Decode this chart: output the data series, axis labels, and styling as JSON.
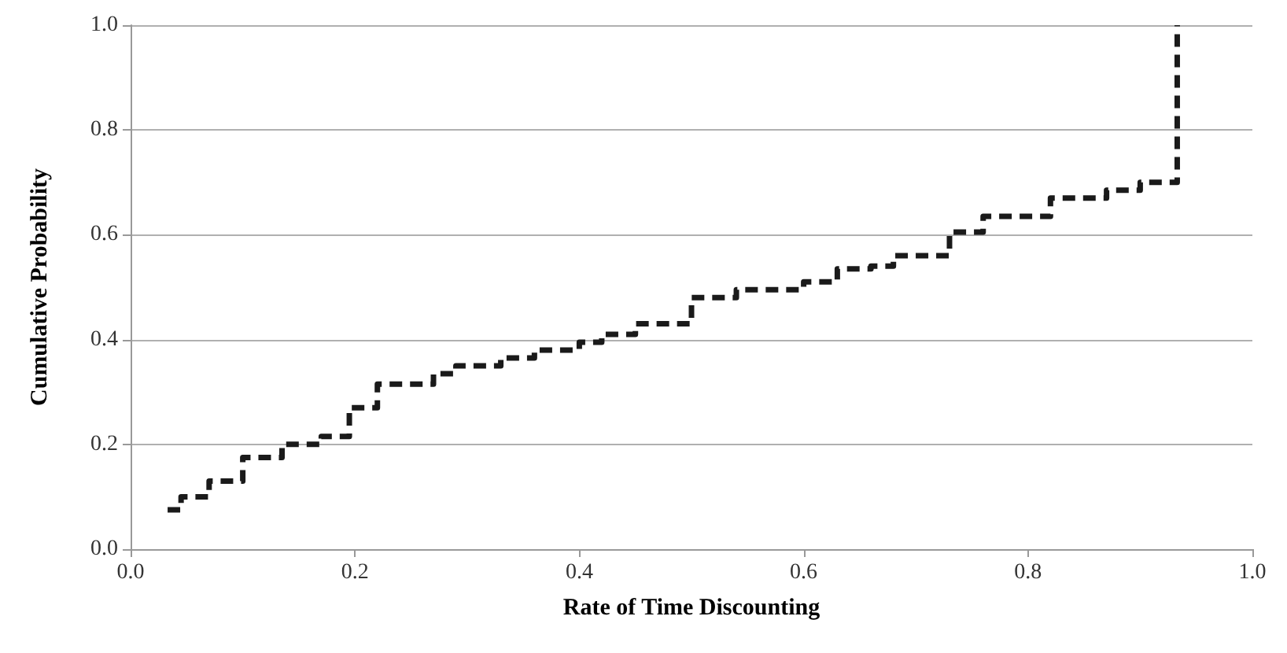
{
  "chart_data": {
    "type": "step",
    "xlabel": "Rate of Time Discounting",
    "ylabel": "Cumulative Probability",
    "x": [
      0.033,
      0.045,
      0.07,
      0.1,
      0.135,
      0.17,
      0.195,
      0.22,
      0.27,
      0.29,
      0.33,
      0.36,
      0.4,
      0.42,
      0.45,
      0.5,
      0.54,
      0.6,
      0.63,
      0.66,
      0.68,
      0.73,
      0.76,
      0.82,
      0.87,
      0.9,
      0.933
    ],
    "series": [
      {
        "color": "#1a1a1a",
        "values": [
          0.075,
          0.1,
          0.13,
          0.175,
          0.2,
          0.215,
          0.27,
          0.315,
          0.335,
          0.35,
          0.365,
          0.38,
          0.395,
          0.41,
          0.43,
          0.48,
          0.495,
          0.51,
          0.535,
          0.54,
          0.56,
          0.605,
          0.635,
          0.67,
          0.685,
          0.7,
          1.0
        ]
      }
    ],
    "xlim": [
      0,
      1
    ],
    "xticks": [
      {
        "value": 0,
        "label": "0.0"
      },
      0.2,
      0.4,
      0.6,
      0.8,
      {
        "value": 1,
        "label": "1.0"
      }
    ],
    "ylim": [
      0,
      1
    ],
    "yticks": [
      {
        "value": 0,
        "label": "0.0"
      },
      0.2,
      0.4,
      0.6,
      0.8,
      {
        "value": 1,
        "label": "1.0"
      }
    ],
    "grid": "y",
    "marker": "none",
    "line_style": "dashed"
  }
}
